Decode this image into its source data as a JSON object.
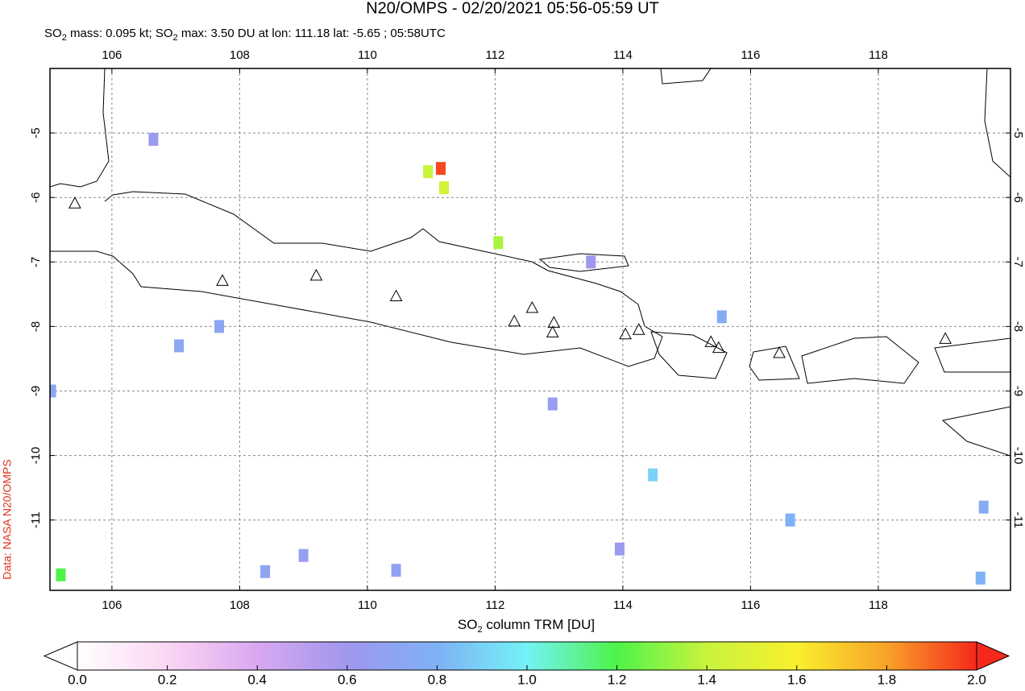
{
  "chart_data": {
    "type": "map",
    "title": "N20/OMPS - 02/20/2021 05:56-05:59 UT",
    "subtitle": [
      "SO",
      "2",
      " mass: 0.095 kt; SO",
      "2",
      " max: 3.50 DU at lon: 111.18 lat: -5.65 ; 05:58UTC"
    ],
    "credit": "Data: NASA N20/OMPS",
    "colorbar_label": [
      "SO",
      "2",
      " column TRM [DU]"
    ],
    "xlim": [
      105.03,
      120.07
    ],
    "ylim": [
      -12.09,
      -4.0
    ],
    "xticks": [
      106,
      108,
      110,
      112,
      114,
      116,
      118
    ],
    "yticks": [
      -5,
      -6,
      -7,
      -8,
      -9,
      -10,
      -11
    ],
    "grid": true,
    "clim": [
      0,
      2
    ],
    "cticks": [
      {
        "value": 0,
        "label": "0.0"
      },
      0.2,
      0.4,
      0.6,
      0.8,
      {
        "value": 1,
        "label": "1.0"
      },
      1.2,
      1.4,
      1.6,
      1.8,
      {
        "value": 2,
        "label": "2.0"
      }
    ],
    "colormap": [
      "#ffffff",
      "#fbd6f4",
      "#d9a8f0",
      "#9f97ee",
      "#7fb1f5",
      "#74f2f6",
      "#4ef34a",
      "#c9f33d",
      "#f9f02d",
      "#f8a228",
      "#f5281c"
    ],
    "pixels": {
      "lon": [
        111.15,
        110.95,
        111.2,
        112.05,
        105.2,
        107.05,
        105.05,
        108.4,
        109.0,
        110.45,
        115.55,
        116.62,
        119.65,
        119.6,
        113.95,
        114.47,
        112.9,
        113.5,
        106.65,
        107.68
      ],
      "lat": [
        -5.55,
        -5.6,
        -5.85,
        -6.7,
        -11.85,
        -8.3,
        -9.0,
        -11.8,
        -11.55,
        -11.78,
        -7.85,
        -11.0,
        -10.8,
        -11.9,
        -11.45,
        -10.3,
        -9.2,
        -7.0,
        -5.1,
        -8.0
      ],
      "values": [
        1.95,
        1.4,
        1.45,
        1.35,
        1.2,
        0.72,
        0.7,
        0.7,
        0.65,
        0.68,
        0.75,
        0.8,
        0.75,
        0.8,
        0.62,
        0.9,
        0.65,
        0.6,
        0.62,
        0.72
      ]
    },
    "volcanoes": {
      "lon": [
        105.42,
        107.73,
        109.2,
        110.45,
        112.3,
        112.58,
        112.92,
        112.9,
        114.04,
        114.25,
        115.38,
        115.5,
        116.45,
        119.05
      ],
      "lat": [
        -6.1,
        -7.3,
        -7.22,
        -7.54,
        -7.93,
        -7.72,
        -7.95,
        -8.1,
        -8.13,
        -8.06,
        -8.25,
        -8.34,
        -8.42,
        -8.2
      ]
    }
  }
}
